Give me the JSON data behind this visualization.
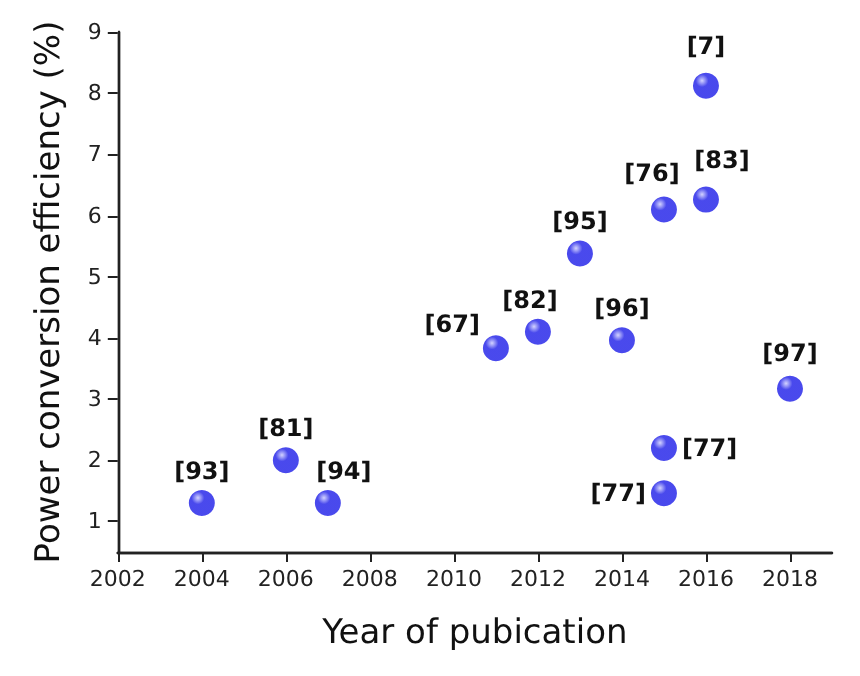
{
  "chart_data": {
    "type": "scatter",
    "xlabel": "Year of pubication",
    "ylabel": "Power conversion efficiency (%)",
    "x": [
      2004,
      2006,
      2007,
      2011,
      2012,
      2013,
      2014,
      2015,
      2015,
      2015,
      2016,
      2016,
      2018
    ],
    "series": [
      {
        "color": "#1c1ce8",
        "values": [
          1.3,
          2.0,
          1.3,
          3.83,
          4.1,
          5.38,
          3.96,
          6.1,
          2.2,
          1.46,
          8.12,
          6.26,
          3.17
        ]
      }
    ],
    "annotations": [
      {
        "text": "[93]",
        "x": 2004,
        "y": 1.3
      },
      {
        "text": "[81]",
        "x": 2006,
        "y": 2.0
      },
      {
        "text": "[94]",
        "x": 2007,
        "y": 1.3
      },
      {
        "text": "[67]",
        "x": 2011,
        "y": 3.83
      },
      {
        "text": "[82]",
        "x": 2012,
        "y": 4.1
      },
      {
        "text": "[95]",
        "x": 2013,
        "y": 5.38
      },
      {
        "text": "[96]",
        "x": 2014,
        "y": 3.96
      },
      {
        "text": "[76]",
        "x": 2015,
        "y": 6.1
      },
      {
        "text": "[77]",
        "x": 2015,
        "y": 2.2
      },
      {
        "text": "[77]",
        "x": 2015,
        "y": 1.46
      },
      {
        "text": "[7]",
        "x": 2016,
        "y": 8.12
      },
      {
        "text": "[83]",
        "x": 2016,
        "y": 6.26
      },
      {
        "text": "[97]",
        "x": 2018,
        "y": 3.17
      }
    ],
    "xlim": [
      2002,
      2019
    ],
    "xticks": [
      2002,
      2004,
      2006,
      2008,
      2010,
      2012,
      2014,
      2016,
      2018
    ],
    "ylim": [
      0.5,
      9
    ],
    "yticks": [
      1,
      2,
      3,
      4,
      5,
      6,
      7,
      8,
      9
    ],
    "grid": false,
    "marker": "circle"
  }
}
